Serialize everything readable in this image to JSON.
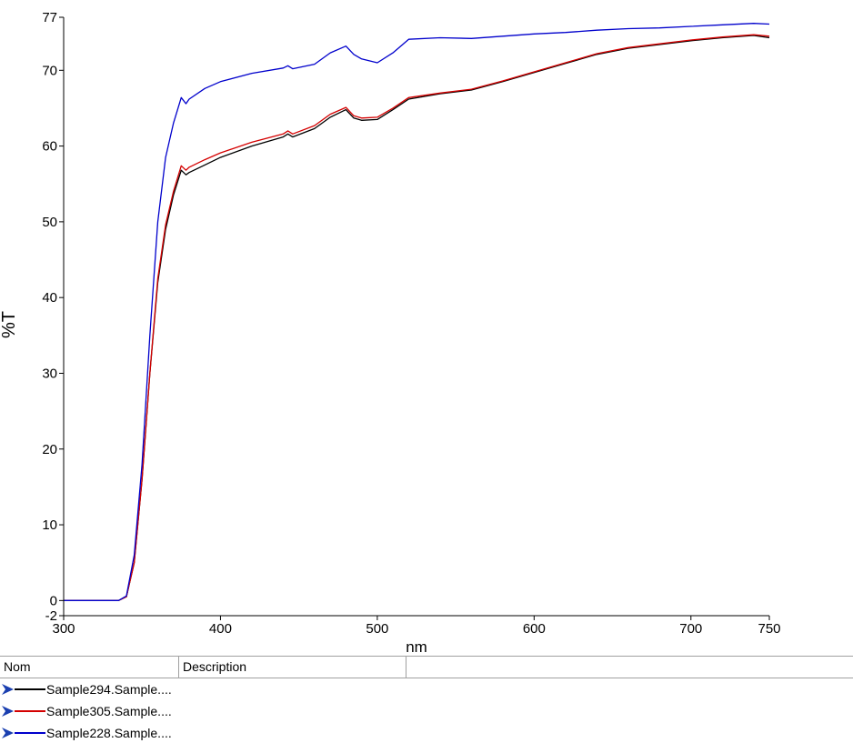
{
  "chart_data": {
    "type": "line",
    "xlabel": "nm",
    "ylabel": "%T",
    "xlim": [
      300,
      750
    ],
    "ylim": [
      -2,
      77
    ],
    "x_ticks": [
      "300",
      "400",
      "500",
      "600",
      "700",
      "750"
    ],
    "y_ticks": [
      "77",
      "70",
      "60",
      "50",
      "40",
      "30",
      "20",
      "10",
      "0",
      "-2"
    ],
    "grid": false,
    "series": [
      {
        "name": "Sample294.Sample....",
        "color": "#000000",
        "points": [
          [
            300,
            0
          ],
          [
            320,
            0
          ],
          [
            335,
            0
          ],
          [
            340,
            0.5
          ],
          [
            345,
            5
          ],
          [
            350,
            16
          ],
          [
            355,
            30
          ],
          [
            360,
            42
          ],
          [
            365,
            49
          ],
          [
            370,
            53.5
          ],
          [
            375,
            56.8
          ],
          [
            378,
            56.2
          ],
          [
            380,
            56.5
          ],
          [
            390,
            57.5
          ],
          [
            400,
            58.5
          ],
          [
            420,
            60
          ],
          [
            440,
            61.2
          ],
          [
            443,
            61.6
          ],
          [
            446,
            61.2
          ],
          [
            460,
            62.3
          ],
          [
            470,
            63.8
          ],
          [
            480,
            64.8
          ],
          [
            485,
            63.7
          ],
          [
            490,
            63.4
          ],
          [
            500,
            63.5
          ],
          [
            510,
            64.8
          ],
          [
            520,
            66.2
          ],
          [
            540,
            66.9
          ],
          [
            560,
            67.4
          ],
          [
            580,
            68.5
          ],
          [
            600,
            69.7
          ],
          [
            620,
            70.9
          ],
          [
            640,
            72.1
          ],
          [
            660,
            72.9
          ],
          [
            680,
            73.4
          ],
          [
            700,
            73.9
          ],
          [
            720,
            74.3
          ],
          [
            740,
            74.6
          ],
          [
            750,
            74.3
          ]
        ]
      },
      {
        "name": "Sample305.Sample....",
        "color": "#d40000",
        "points": [
          [
            300,
            0
          ],
          [
            320,
            0
          ],
          [
            335,
            0
          ],
          [
            340,
            0.5
          ],
          [
            345,
            5
          ],
          [
            350,
            16
          ],
          [
            355,
            30
          ],
          [
            360,
            42.5
          ],
          [
            365,
            49.6
          ],
          [
            370,
            54
          ],
          [
            375,
            57.4
          ],
          [
            378,
            56.8
          ],
          [
            380,
            57.2
          ],
          [
            390,
            58.2
          ],
          [
            400,
            59.1
          ],
          [
            420,
            60.5
          ],
          [
            440,
            61.6
          ],
          [
            443,
            62
          ],
          [
            446,
            61.6
          ],
          [
            460,
            62.7
          ],
          [
            470,
            64.2
          ],
          [
            480,
            65.1
          ],
          [
            485,
            64
          ],
          [
            490,
            63.7
          ],
          [
            500,
            63.8
          ],
          [
            510,
            65
          ],
          [
            520,
            66.4
          ],
          [
            540,
            67
          ],
          [
            560,
            67.5
          ],
          [
            580,
            68.6
          ],
          [
            600,
            69.8
          ],
          [
            620,
            71
          ],
          [
            640,
            72.2
          ],
          [
            660,
            73
          ],
          [
            680,
            73.5
          ],
          [
            700,
            74
          ],
          [
            720,
            74.4
          ],
          [
            740,
            74.7
          ],
          [
            750,
            74.5
          ]
        ]
      },
      {
        "name": "Sample228.Sample....",
        "color": "#0000cc",
        "points": [
          [
            300,
            0
          ],
          [
            320,
            0
          ],
          [
            335,
            0
          ],
          [
            340,
            0.6
          ],
          [
            345,
            6
          ],
          [
            350,
            18
          ],
          [
            355,
            35
          ],
          [
            360,
            50
          ],
          [
            365,
            58.5
          ],
          [
            370,
            63
          ],
          [
            375,
            66.4
          ],
          [
            378,
            65.6
          ],
          [
            380,
            66.2
          ],
          [
            390,
            67.6
          ],
          [
            400,
            68.5
          ],
          [
            420,
            69.6
          ],
          [
            440,
            70.3
          ],
          [
            443,
            70.6
          ],
          [
            446,
            70.2
          ],
          [
            460,
            70.8
          ],
          [
            470,
            72.3
          ],
          [
            480,
            73.2
          ],
          [
            485,
            72.1
          ],
          [
            490,
            71.5
          ],
          [
            500,
            71
          ],
          [
            510,
            72.3
          ],
          [
            520,
            74.1
          ],
          [
            540,
            74.3
          ],
          [
            560,
            74.2
          ],
          [
            580,
            74.5
          ],
          [
            600,
            74.8
          ],
          [
            620,
            75
          ],
          [
            640,
            75.3
          ],
          [
            660,
            75.5
          ],
          [
            680,
            75.6
          ],
          [
            700,
            75.8
          ],
          [
            720,
            76
          ],
          [
            740,
            76.2
          ],
          [
            750,
            76.1
          ]
        ]
      }
    ]
  },
  "legend": {
    "columns": [
      "Nom",
      "Description"
    ],
    "rows": [
      {
        "name": "Sample294.Sample....",
        "color": "#000000"
      },
      {
        "name": "Sample305.Sample....",
        "color": "#d40000"
      },
      {
        "name": "Sample228.Sample....",
        "color": "#0000cc"
      }
    ],
    "arrow_color": "#1a3fb0"
  }
}
